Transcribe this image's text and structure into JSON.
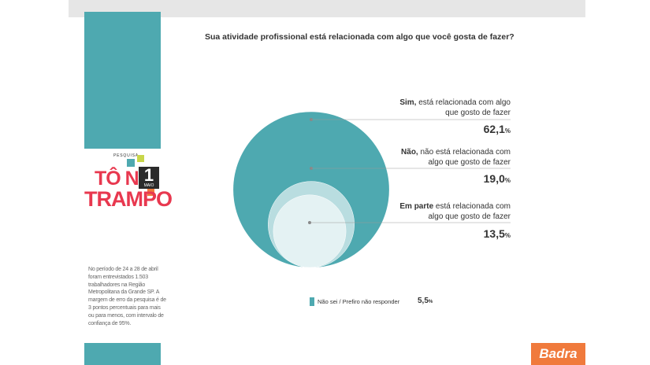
{
  "question": "Sua atividade profissional está relacionada com algo que você gosta de fazer?",
  "colors": {
    "accent": "#4ea9b0",
    "brand_orange": "#f07a3c",
    "logo_red": "#e8384f"
  },
  "sidebar": {
    "logo": {
      "pesquisa": "PESQUISA",
      "line1": "TÔ NO",
      "line2": "TRAMPO",
      "badge_number": "1",
      "badge_text": "MAIO"
    },
    "methodology": "No período de 24 a 28 de abril foram entrevistados 1.503 trabalhadores na Região Metropolitana da Grande SP. A margem de erro da pesquisa é de 3 pontos percentuais para mais ou para menos, com intervalo de confiança de 95%."
  },
  "chart_data": {
    "type": "pie",
    "title": "Sua atividade profissional está relacionada com algo que você gosta de fazer?",
    "series": [
      {
        "lead": "Sim,",
        "rest": " está relacionada com algo que gosto de fazer",
        "value": 62.1,
        "value_label": "62,1",
        "color": "#4ea9b0"
      },
      {
        "lead": "Não,",
        "rest": " não está relacionada com algo que gosto de fazer",
        "value": 19.0,
        "value_label": "19,0",
        "color": "#b9dde0"
      },
      {
        "lead": "Em parte",
        "rest": " está relacionada com algo que gosto de fazer",
        "value": 13.5,
        "value_label": "13,5",
        "color": "#e4f2f3"
      }
    ],
    "legend": {
      "label": "Não sei / Prefiro não responder",
      "value": 5.5,
      "value_label": "5,5"
    },
    "unit": "%"
  },
  "footer": {
    "brand": "Badra"
  }
}
